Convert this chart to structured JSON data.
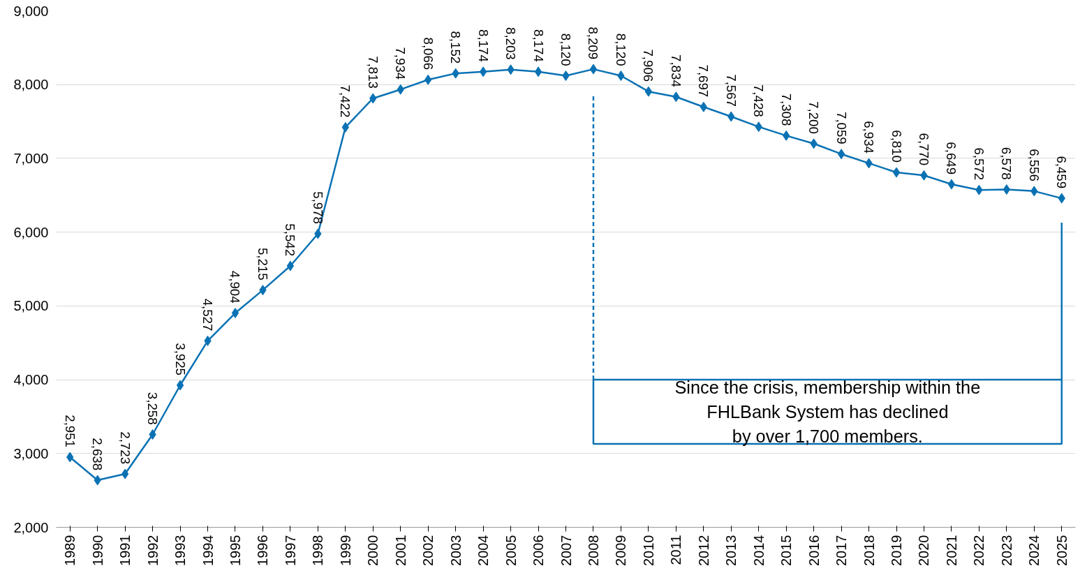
{
  "chart_data": {
    "type": "line",
    "categories": [
      "1989",
      "1990",
      "1991",
      "1992",
      "1993",
      "1994",
      "1995",
      "1996",
      "1997",
      "1998",
      "1999",
      "2000",
      "2001",
      "2002",
      "2003",
      "2004",
      "2005",
      "2006",
      "2007",
      "2008",
      "2009",
      "2010",
      "2011",
      "2012",
      "2013",
      "2014",
      "2015",
      "2016",
      "2017",
      "2018",
      "2019",
      "2020",
      "2021",
      "2022",
      "2023",
      "2024",
      "2025"
    ],
    "series": [
      {
        "color": "#0a72b4",
        "values": [
          2951,
          2638,
          2723,
          3258,
          3925,
          4527,
          4904,
          5215,
          5542,
          5978,
          7422,
          7813,
          7934,
          8066,
          8152,
          8174,
          8203,
          8174,
          8120,
          8209,
          8120,
          7906,
          7834,
          7697,
          7567,
          7428,
          7308,
          7200,
          7059,
          6934,
          6810,
          6770,
          6649,
          6572,
          6578,
          6556,
          6459
        ]
      }
    ],
    "value_labels": [
      "2,951",
      "2,638",
      "2,723",
      "3,258",
      "3,925",
      "4,527",
      "4,904",
      "5,215",
      "5,542",
      "5,978",
      "7,422",
      "7,813",
      "7,934",
      "8,066",
      "8,152",
      "8,174",
      "8,203",
      "8,174",
      "8,120",
      "8,209",
      "8,120",
      "7,906",
      "7,834",
      "7,697",
      "7,567",
      "7,428",
      "7,308",
      "7,200",
      "7,059",
      "6,934",
      "6,810",
      "6,770",
      "6,649",
      "6,572",
      "6,578",
      "6,556",
      "6,459"
    ],
    "marker": "diamond",
    "line_style": "solid",
    "ylim": [
      2000,
      9000
    ],
    "yticks": [
      {
        "value": 2000,
        "label": "2,000"
      },
      {
        "value": 3000,
        "label": "3,000"
      },
      {
        "value": 4000,
        "label": "4,000"
      },
      {
        "value": 5000,
        "label": "5,000"
      },
      {
        "value": 6000,
        "label": "6,000"
      },
      {
        "value": 7000,
        "label": "7,000"
      },
      {
        "value": 8000,
        "label": "8,000"
      },
      {
        "value": 9000,
        "label": "9,000"
      }
    ],
    "grid": "y",
    "ref_lines": [
      {
        "axis": "x",
        "value": "2008",
        "color": "#0a72b4",
        "line_style": "dashed"
      },
      {
        "axis": "x",
        "value": "2025",
        "color": "#0a72b4",
        "line_style": "solid"
      }
    ],
    "annotations": [
      "Since the crisis, membership within the\nFHLBank System has declined\nby over 1,700 members."
    ]
  }
}
